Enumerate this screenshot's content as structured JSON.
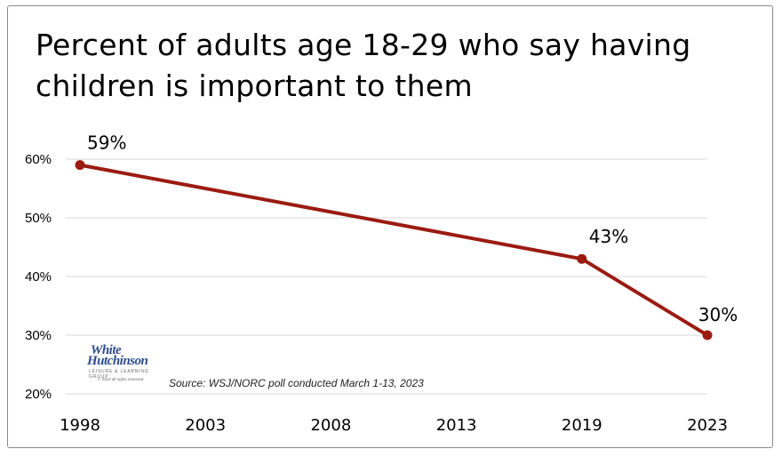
{
  "title": "Percent of adults age 18-29 who say having children is important to them",
  "source": "Source: WSJ/NORC poll conducted March 1-13, 2023",
  "logo": {
    "line1": "White",
    "line2": "Hutchinson",
    "tagline": "LEISURE & LEARNING GROUP",
    "copyright": "© 2023 all rights reserved"
  },
  "colors": {
    "line": "#9b1b12",
    "grid": "#d9d9d9",
    "text": "#000000"
  },
  "chart_data": {
    "type": "line",
    "title": "Percent of adults age 18-29 who say having children is important to them",
    "xlabel": "",
    "ylabel": "",
    "x_ticks": [
      "1998",
      "2003",
      "2008",
      "2013",
      "2019",
      "2023"
    ],
    "y_ticks": [
      "20%",
      "30%",
      "40%",
      "50%",
      "60%"
    ],
    "ylim": [
      20,
      60
    ],
    "grid": true,
    "series": [
      {
        "x": [
          "1998",
          "2019",
          "2023"
        ],
        "values": [
          59,
          43,
          30
        ],
        "labels": [
          "59%",
          "43%",
          "30%"
        ]
      }
    ]
  }
}
